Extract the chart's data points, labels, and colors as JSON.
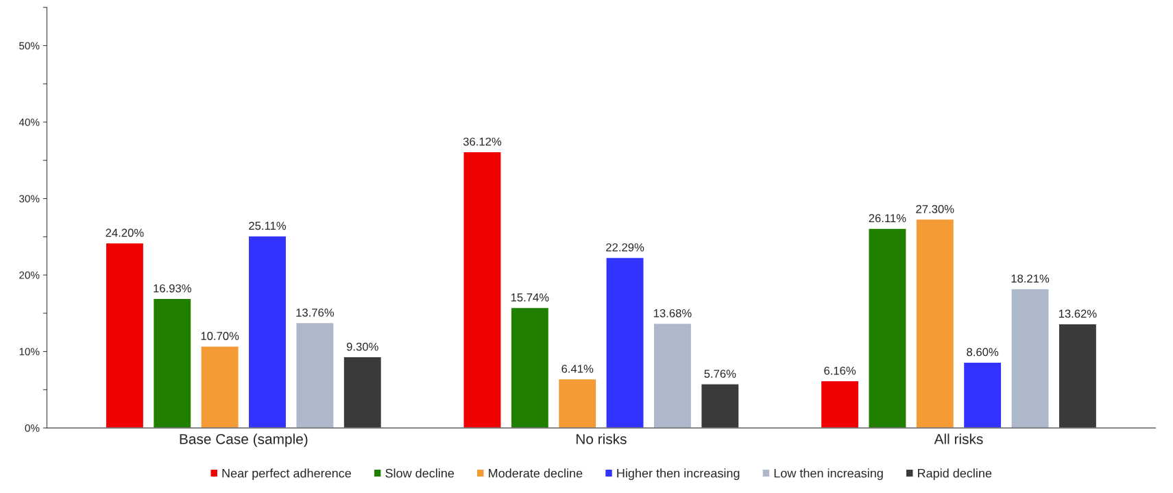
{
  "chart_data": {
    "type": "bar",
    "categories": [
      "Base Case (sample)",
      "No risks",
      "All risks"
    ],
    "series": [
      {
        "name": "Near perfect adherence",
        "color": "#f00000",
        "values": [
          24.2,
          36.12,
          6.16
        ],
        "value_labels": [
          "24.20%",
          "36.12%",
          "6.16%"
        ]
      },
      {
        "name": "Slow decline",
        "color": "#217f00",
        "values": [
          16.93,
          15.74,
          26.11
        ],
        "value_labels": [
          "16.93%",
          "15.74%",
          "26.11%"
        ]
      },
      {
        "name": "Moderate decline",
        "color": "#f59b35",
        "values": [
          10.7,
          6.41,
          27.3
        ],
        "value_labels": [
          "10.70%",
          "6.41%",
          "27.30%"
        ]
      },
      {
        "name": "Higher then increasing",
        "color": "#3333ff",
        "values": [
          25.11,
          22.29,
          8.6
        ],
        "value_labels": [
          "25.11%",
          "22.29%",
          "8.60%"
        ]
      },
      {
        "name": "Low then increasing",
        "color": "#adb9ca",
        "values": [
          13.76,
          13.68,
          18.21
        ],
        "value_labels": [
          "13.76%",
          "13.68%",
          "18.21%"
        ]
      },
      {
        "name": "Rapid decline",
        "color": "#3a3a38",
        "values": [
          9.3,
          5.76,
          13.62
        ],
        "value_labels": [
          "9.30%",
          "5.76%",
          "13.62%"
        ]
      }
    ],
    "ylim": [
      0,
      55
    ],
    "yticks": [
      {
        "value": 0,
        "label": "0%"
      },
      {
        "value": 5,
        "label": null
      },
      {
        "value": 10,
        "label": "10%"
      },
      {
        "value": 15,
        "label": null
      },
      {
        "value": 20,
        "label": "20%"
      },
      {
        "value": 25,
        "label": null
      },
      {
        "value": 30,
        "label": "30%"
      },
      {
        "value": 35,
        "label": null
      },
      {
        "value": 40,
        "label": "40%"
      },
      {
        "value": 45,
        "label": null
      },
      {
        "value": 50,
        "label": "50%"
      },
      {
        "value": 55,
        "label": null
      }
    ],
    "grid": false,
    "legend": "bottom"
  }
}
